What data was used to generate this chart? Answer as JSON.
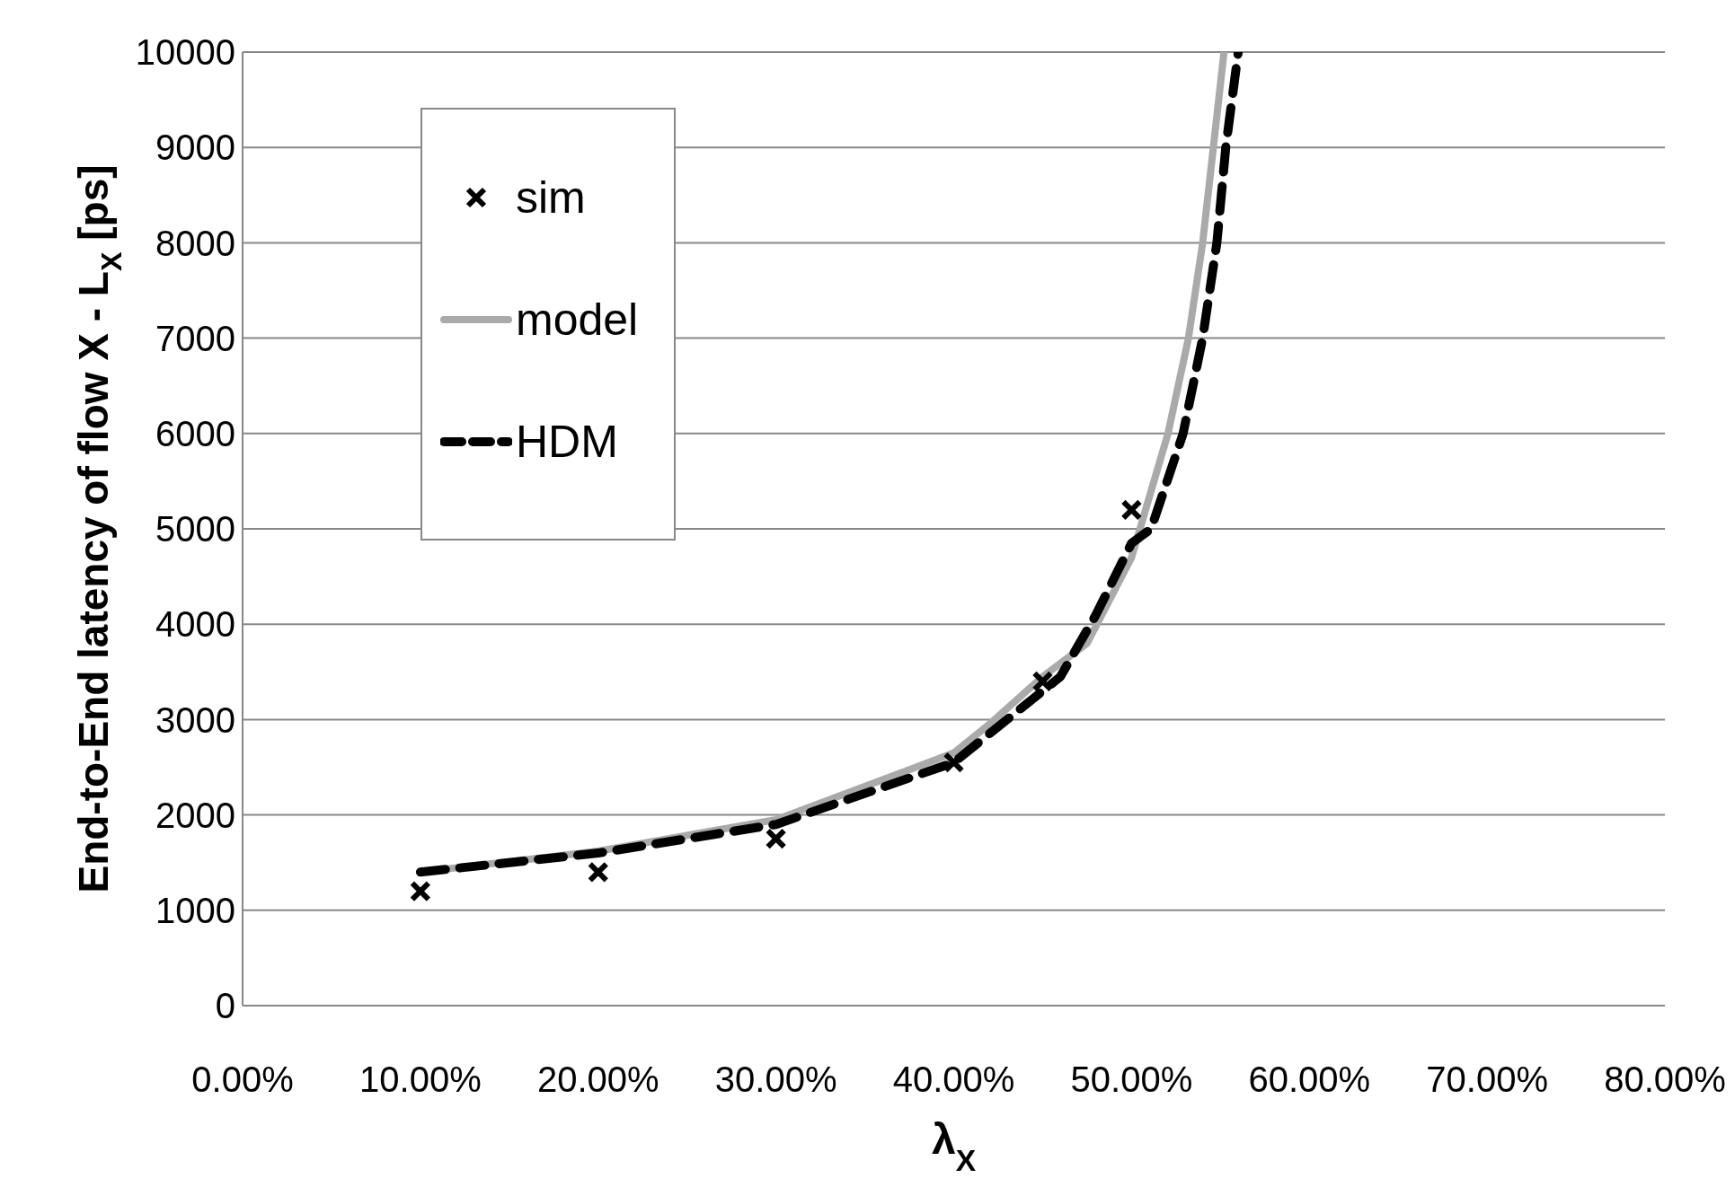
{
  "chart_data": {
    "type": "line",
    "xlabel": "λ$_{X}$",
    "ylabel": "End-to-End latency of flow X - L$_{X}$ [ps]",
    "xlim": [
      0,
      80
    ],
    "xticks": [
      {
        "value": 0,
        "label": "0.00%"
      },
      {
        "value": 10,
        "label": "10.00%"
      },
      {
        "value": 20,
        "label": "20.00%"
      },
      {
        "value": 30,
        "label": "30.00%"
      },
      {
        "value": 40,
        "label": "40.00%"
      },
      {
        "value": 50,
        "label": "50.00%"
      },
      {
        "value": 60,
        "label": "60.00%"
      },
      {
        "value": 70,
        "label": "70.00%"
      },
      {
        "value": 80,
        "label": "80.00%"
      }
    ],
    "ylim": [
      0,
      10000
    ],
    "yticks": [
      0,
      1000,
      2000,
      3000,
      4000,
      5000,
      6000,
      7000,
      8000,
      9000,
      10000
    ],
    "grid": "y",
    "legend": "top left",
    "series": [
      {
        "name": "sim",
        "type": "scatter",
        "color": "#000000",
        "marker": "cross",
        "x": [
          10,
          20,
          30,
          40,
          45,
          50
        ],
        "values": [
          1200,
          1400,
          1750,
          2550,
          3400,
          5200
        ]
      },
      {
        "name": "model",
        "color": "#aaaaaa",
        "line_style": "solid",
        "marker": "none",
        "x": [
          10,
          20,
          30,
          40,
          42,
          45,
          47.5,
          50,
          52.05,
          53.2,
          54,
          54.6,
          55.2
        ],
        "values": [
          1400,
          1620,
          1950,
          2650,
          2950,
          3450,
          3800,
          4700,
          6000,
          7000,
          8000,
          9000,
          10000
        ]
      },
      {
        "name": "HDM",
        "color": "#000000",
        "line_style": "dashed",
        "marker": "none",
        "x": [
          10,
          20,
          30,
          40,
          45,
          46,
          48,
          50,
          51.1,
          52.9,
          54,
          54.8,
          55.3,
          56
        ],
        "values": [
          1400,
          1600,
          1900,
          2550,
          3300,
          3450,
          4100,
          4850,
          5000,
          6000,
          7000,
          8000,
          9000,
          10000
        ]
      }
    ]
  }
}
